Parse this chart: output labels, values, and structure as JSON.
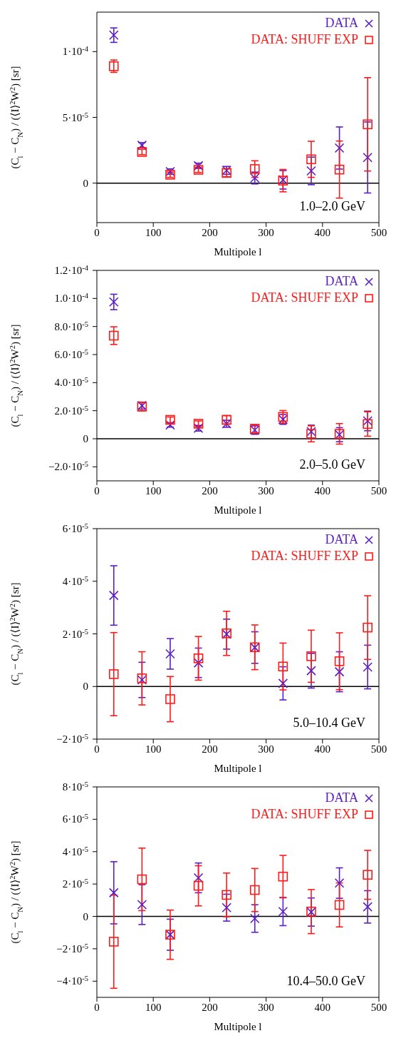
{
  "chart_data": [
    {
      "type": "scatter",
      "xlabel": "Multipole l",
      "ylabel": "(C$_{l}$ − C$_{N}$) / (⟨I⟩$^{2}$W$^{2}$)  [sr]",
      "annotations": [
        "1.0–2.0 GeV"
      ],
      "legend": "top right",
      "xlim": [
        0,
        500
      ],
      "xticks": [
        0,
        100,
        200,
        300,
        400,
        500
      ],
      "ylim": [
        -3e-05,
        0.00013
      ],
      "yticks": [
        {
          "value": 0,
          "label": "0"
        },
        {
          "value": 5e-05,
          "label": "5·10$^{-5}$"
        },
        {
          "value": 0.0001,
          "label": "1·10$^{-4}$"
        }
      ],
      "ref_lines": [
        {
          "axis": "y",
          "value": 0,
          "color": "#000000"
        }
      ],
      "x": [
        30,
        80,
        130,
        180,
        230,
        280,
        330,
        380,
        430,
        480
      ],
      "series": [
        {
          "name": "DATA",
          "color": "#5a1ec8",
          "marker": "cross",
          "values": [
            0.0001125,
            2.88e-05,
            8.8e-06,
            1.32e-05,
            9.7e-06,
            3.9e-06,
            2.5e-06,
            9.3e-06,
            2.67e-05,
            1.95e-05
          ],
          "errors": [
            5.5e-06,
            2e-06,
            2e-06,
            2e-06,
            3e-06,
            4.5e-06,
            7e-06,
            1.05e-05,
            1.6e-05,
            2.7e-05
          ]
        },
        {
          "name": "DATA: SHUFF EXP",
          "color": "#ff1a1a",
          "marker": "square",
          "values": [
            8.89e-05,
            2.37e-05,
            6.4e-06,
            1.01e-05,
            7.8e-06,
            1.07e-05,
            1.9e-06,
            1.81e-05,
            1.03e-05,
            4.47e-05
          ],
          "errors": [
            4.7e-06,
            2e-06,
            2e-06,
            2e-06,
            3e-06,
            6.3e-06,
            8.5e-06,
            1.37e-05,
            2.17e-05,
            3.55e-05
          ]
        }
      ]
    },
    {
      "type": "scatter",
      "xlabel": "Multipole l",
      "ylabel": "(C$_{l}$ − C$_{N}$) / (⟨I⟩$^{2}$W$^{2}$)  [sr]",
      "annotations": [
        "2.0–5.0 GeV"
      ],
      "legend": "top right",
      "xlim": [
        0,
        500
      ],
      "xticks": [
        0,
        100,
        200,
        300,
        400,
        500
      ],
      "ylim": [
        -3e-05,
        0.00012
      ],
      "yticks": [
        {
          "value": -2e-05,
          "label": "−2.0·10$^{-5}$"
        },
        {
          "value": 0,
          "label": "0"
        },
        {
          "value": 2e-05,
          "label": "2.0·10$^{-5}$"
        },
        {
          "value": 4e-05,
          "label": "4.0·10$^{-5}$"
        },
        {
          "value": 6e-05,
          "label": "6.0·10$^{-5}$"
        },
        {
          "value": 8e-05,
          "label": "8.0·10$^{-5}$"
        },
        {
          "value": 0.0001,
          "label": "1.0·10$^{-4}$"
        },
        {
          "value": 0.00012,
          "label": "1.2·10$^{-4}$"
        }
      ],
      "ref_lines": [
        {
          "axis": "y",
          "value": 0,
          "color": "#000000"
        }
      ],
      "x": [
        30,
        80,
        130,
        180,
        230,
        280,
        330,
        380,
        430,
        480
      ],
      "series": [
        {
          "name": "DATA",
          "color": "#5a1ec8",
          "marker": "cross",
          "values": [
            9.75e-05,
            2.36e-05,
            9.8e-06,
            7.5e-06,
            1.07e-05,
            6.2e-06,
            1.38e-05,
            5.1e-06,
            2.9e-06,
            1.27e-05
          ],
          "errors": [
            5.5e-06,
            2.5e-06,
            1.5e-06,
            2e-06,
            2.5e-06,
            3e-06,
            3.5e-06,
            4.6e-06,
            5e-06,
            7e-06
          ]
        },
        {
          "name": "DATA: SHUFF EXP",
          "color": "#ff1a1a",
          "marker": "square",
          "values": [
            7.35e-05,
            2.29e-05,
            1.35e-05,
            1.07e-05,
            1.35e-05,
            7.1e-06,
            1.56e-05,
            3.5e-06,
            3.5e-06,
            1.05e-05
          ],
          "errors": [
            6.3e-06,
            3e-06,
            2e-06,
            2e-06,
            3e-06,
            3e-06,
            4.5e-06,
            5.7e-06,
            7.3e-06,
            8.7e-06
          ]
        }
      ]
    },
    {
      "type": "scatter",
      "xlabel": "Multipole l",
      "ylabel": "(C$_{l}$ − C$_{N}$) / (⟨I⟩$^{2}$W$^{2}$)  [sr]",
      "annotations": [
        "5.0–10.4 GeV"
      ],
      "legend": "top right",
      "xlim": [
        0,
        500
      ],
      "xticks": [
        0,
        100,
        200,
        300,
        400,
        500
      ],
      "ylim": [
        -2e-05,
        6e-05
      ],
      "yticks": [
        {
          "value": -2e-05,
          "label": "−2·10$^{-5}$"
        },
        {
          "value": 0,
          "label": "0"
        },
        {
          "value": 2e-05,
          "label": "2·10$^{-5}$"
        },
        {
          "value": 4e-05,
          "label": "4·10$^{-5}$"
        },
        {
          "value": 6e-05,
          "label": "6·10$^{-5}$"
        }
      ],
      "ref_lines": [
        {
          "axis": "y",
          "value": 0,
          "color": "#000000"
        }
      ],
      "x": [
        30,
        80,
        130,
        180,
        230,
        280,
        330,
        380,
        430,
        480
      ],
      "series": [
        {
          "name": "DATA",
          "color": "#5a1ec8",
          "marker": "cross",
          "values": [
            3.46e-05,
            2.5e-06,
            1.24e-05,
            9e-06,
            1.99e-05,
            1.48e-05,
            1.2e-06,
            6e-06,
            5.6e-06,
            7.4e-06
          ],
          "errors": [
            1.13e-05,
            6.7e-06,
            5.8e-06,
            5.6e-06,
            5.7e-06,
            6e-06,
            6.3e-06,
            6.6e-06,
            7.6e-06,
            8.3e-06
          ]
        },
        {
          "name": "DATA: SHUFF EXP",
          "color": "#ff1a1a",
          "marker": "square",
          "values": [
            4.7e-06,
            3.1e-06,
            -4.8e-06,
            1.07e-05,
            2.02e-05,
            1.49e-05,
            7.6e-06,
            1.15e-05,
            9.6e-06,
            2.24e-05
          ],
          "errors": [
            1.58e-05,
            1.01e-05,
            8.6e-06,
            8.3e-06,
            8.4e-06,
            8.5e-06,
            8.9e-06,
            9.9e-06,
            1.08e-05,
            1.21e-05
          ]
        }
      ]
    },
    {
      "type": "scatter",
      "xlabel": "Multipole l",
      "ylabel": "(C$_{l}$ − C$_{N}$) / (⟨I⟩$^{2}$W$^{2}$)  [sr]",
      "annotations": [
        "10.4–50.0 GeV"
      ],
      "legend": "top right",
      "xlim": [
        0,
        500
      ],
      "xticks": [
        0,
        100,
        200,
        300,
        400,
        500
      ],
      "ylim": [
        -5e-05,
        8e-05
      ],
      "yticks": [
        {
          "value": -4e-05,
          "label": "−4·10$^{-5}$"
        },
        {
          "value": -2e-05,
          "label": "−2·10$^{-5}$"
        },
        {
          "value": 0,
          "label": "0"
        },
        {
          "value": 2e-05,
          "label": "2·10$^{-5}$"
        },
        {
          "value": 4e-05,
          "label": "4·10$^{-5}$"
        },
        {
          "value": 6e-05,
          "label": "6·10$^{-5}$"
        },
        {
          "value": 8e-05,
          "label": "8·10$^{-5}$"
        }
      ],
      "ref_lines": [
        {
          "axis": "y",
          "value": 0,
          "color": "#000000"
        }
      ],
      "x": [
        30,
        80,
        130,
        180,
        230,
        280,
        330,
        380,
        430,
        480
      ],
      "series": [
        {
          "name": "DATA",
          "color": "#5a1ec8",
          "marker": "cross",
          "values": [
            1.46e-05,
            7.3e-06,
            -1.13e-05,
            2.38e-05,
            5.4e-06,
            -1.3e-06,
            3e-06,
            2.7e-06,
            2.06e-05,
            5.9e-06
          ],
          "errors": [
            1.92e-05,
            1.23e-05,
            9.6e-06,
            9.2e-06,
            8.3e-06,
            8.5e-06,
            8.7e-06,
            8.7e-06,
            9.4e-06,
            1e-05
          ]
        },
        {
          "name": "DATA: SHUFF EXP",
          "color": "#ff1a1a",
          "marker": "square",
          "values": [
            -1.56e-05,
            2.29e-05,
            -1.13e-05,
            1.89e-05,
            1.33e-05,
            1.63e-05,
            2.46e-05,
            3e-06,
            7.1e-06,
            2.57e-05
          ],
          "errors": [
            2.88e-05,
            1.93e-05,
            1.52e-05,
            1.24e-05,
            1.35e-05,
            1.33e-05,
            1.31e-05,
            1.36e-05,
            1.36e-05,
            1.51e-05
          ]
        }
      ]
    }
  ]
}
